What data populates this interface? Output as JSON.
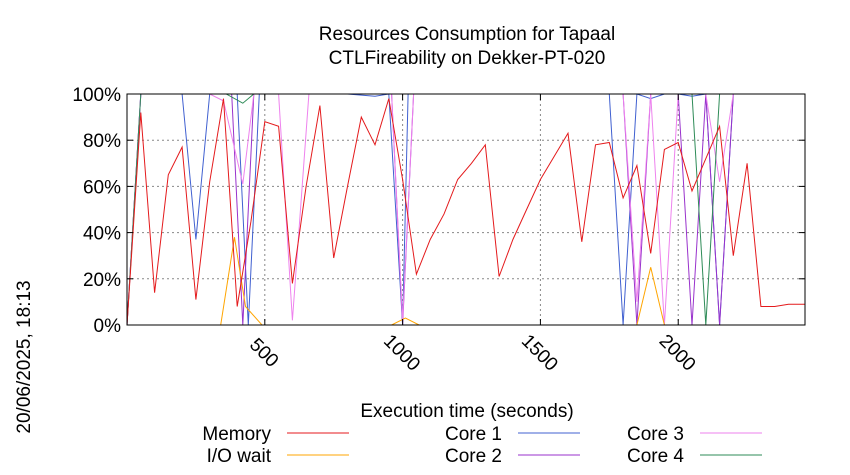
{
  "chart_data": {
    "type": "line",
    "title": "Resources Consumption for Tapaal",
    "subtitle": "CTLFireability on Dekker-PT-020",
    "xlabel": "Execution time (seconds)",
    "ylabel": "",
    "side_label": "20/06/2025, 18:13",
    "xlim": [
      0,
      2460
    ],
    "ylim": [
      0,
      100
    ],
    "x_ticks": [
      500,
      1000,
      1500,
      2000
    ],
    "y_ticks": [
      0,
      20,
      40,
      60,
      80,
      100
    ],
    "y_tick_labels": [
      "0%",
      "20%",
      "40%",
      "60%",
      "80%",
      "100%"
    ],
    "grid": true,
    "legend_position": "bottom",
    "series": [
      {
        "name": "Memory",
        "color": "#e41a1c",
        "x": [
          0,
          50,
          100,
          150,
          200,
          250,
          300,
          350,
          400,
          450,
          500,
          550,
          600,
          650,
          700,
          750,
          800,
          850,
          900,
          950,
          1000,
          1050,
          1100,
          1150,
          1200,
          1250,
          1300,
          1350,
          1400,
          1450,
          1500,
          1550,
          1600,
          1650,
          1700,
          1750,
          1800,
          1850,
          1900,
          1950,
          2000,
          2050,
          2100,
          2150,
          2200,
          2250,
          2300,
          2350,
          2400,
          2460
        ],
        "values": [
          0,
          92,
          14,
          65,
          77,
          11,
          62,
          98,
          8,
          45,
          88,
          86,
          18,
          60,
          95,
          29,
          60,
          90,
          78,
          98,
          63,
          22,
          37,
          48,
          63,
          70,
          78,
          21,
          37,
          50,
          63,
          73,
          83,
          36,
          78,
          79,
          55,
          69,
          31,
          76,
          79,
          58,
          72,
          86,
          30,
          70,
          8,
          8,
          9,
          9
        ]
      },
      {
        "name": "I/O wait",
        "color": "#ffa500",
        "x": [
          0,
          340,
          390,
          430,
          490,
          960,
          1010,
          1060,
          1850,
          1900,
          1950,
          2460
        ],
        "values": [
          0,
          0,
          38,
          8,
          0,
          0,
          3,
          0,
          0,
          25,
          0,
          0
        ]
      },
      {
        "name": "Core 1",
        "color": "#4060d0",
        "x": [
          0,
          50,
          200,
          250,
          300,
          400,
          440,
          480,
          800,
          900,
          950,
          1000,
          1020,
          1060,
          1100,
          1750,
          1800,
          1850,
          1900,
          1950,
          2000,
          2050,
          2100,
          2150,
          2200,
          2250,
          2460
        ],
        "values": [
          0,
          100,
          100,
          37,
          100,
          100,
          0,
          100,
          100,
          99,
          100,
          0,
          100,
          100,
          100,
          100,
          0,
          100,
          98,
          100,
          100,
          99,
          100,
          0,
          100,
          100,
          100
        ]
      },
      {
        "name": "Core 2",
        "color": "#9932cc",
        "x": [
          0,
          50,
          300,
          380,
          420,
          460,
          900,
          960,
          1000,
          1040,
          1800,
          1850,
          1900,
          1950,
          2000,
          2050,
          2100,
          2150,
          2200,
          2460
        ],
        "values": [
          0,
          100,
          100,
          100,
          0,
          100,
          100,
          100,
          0,
          100,
          100,
          0,
          100,
          100,
          100,
          0,
          100,
          0,
          100,
          100
        ]
      },
      {
        "name": "Core 3",
        "color": "#ee82ee",
        "x": [
          0,
          50,
          300,
          350,
          420,
          460,
          550,
          600,
          660,
          960,
          1000,
          1040,
          1800,
          1850,
          1900,
          1950,
          2000,
          2050,
          2100,
          2150,
          2200,
          2460
        ],
        "values": [
          0,
          100,
          100,
          97,
          61,
          100,
          100,
          2,
          100,
          100,
          2,
          100,
          100,
          10,
          100,
          0,
          100,
          100,
          100,
          62,
          100,
          100
        ]
      },
      {
        "name": "Core 4",
        "color": "#2e8b57",
        "x": [
          0,
          50,
          300,
          360,
          420,
          460,
          2000,
          2050,
          2100,
          2150,
          2460
        ],
        "values": [
          0,
          100,
          100,
          100,
          96,
          100,
          100,
          100,
          0,
          100,
          100
        ]
      }
    ]
  }
}
